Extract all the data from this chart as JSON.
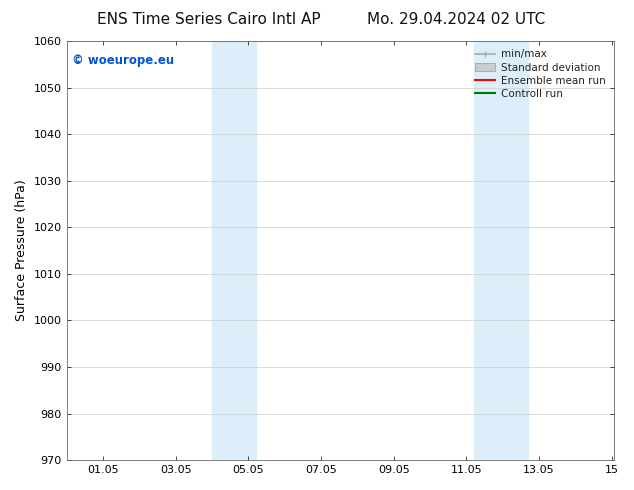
{
  "title_left": "ENS Time Series Cairo Intl AP",
  "title_right": "Mo. 29.04.2024 02 UTC",
  "ylabel": "Surface Pressure (hPa)",
  "xlabel": "",
  "xlim": [
    0,
    15.05
  ],
  "ylim": [
    970,
    1060
  ],
  "yticks": [
    970,
    980,
    990,
    1000,
    1010,
    1020,
    1030,
    1040,
    1050,
    1060
  ],
  "xtick_labels": [
    "01.05",
    "03.05",
    "05.05",
    "07.05",
    "09.05",
    "11.05",
    "13.05",
    "15"
  ],
  "xtick_positions": [
    1,
    3,
    5,
    7,
    9,
    11,
    13,
    15
  ],
  "shaded_bands": [
    {
      "x_start": 4.0,
      "x_end": 5.2
    },
    {
      "x_start": 11.2,
      "x_end": 12.7
    }
  ],
  "shaded_color": "#dceef9",
  "watermark_text": "© woeurope.eu",
  "watermark_color": "#0055cc",
  "legend_items": [
    {
      "label": "min/max",
      "color": "#aaaaaa",
      "linestyle": "-",
      "linewidth": 1.2
    },
    {
      "label": "Standard deviation",
      "color": "#cccccc",
      "linestyle": "-",
      "linewidth": 5
    },
    {
      "label": "Ensemble mean run",
      "color": "#ff0000",
      "linestyle": "-",
      "linewidth": 1.5
    },
    {
      "label": "Controll run",
      "color": "#007700",
      "linestyle": "-",
      "linewidth": 1.5
    }
  ],
  "bg_color": "#ffffff",
  "grid_color": "#cccccc",
  "title_fontsize": 11,
  "label_fontsize": 9,
  "tick_fontsize": 8,
  "legend_fontsize": 7.5,
  "watermark_fontsize": 8.5
}
